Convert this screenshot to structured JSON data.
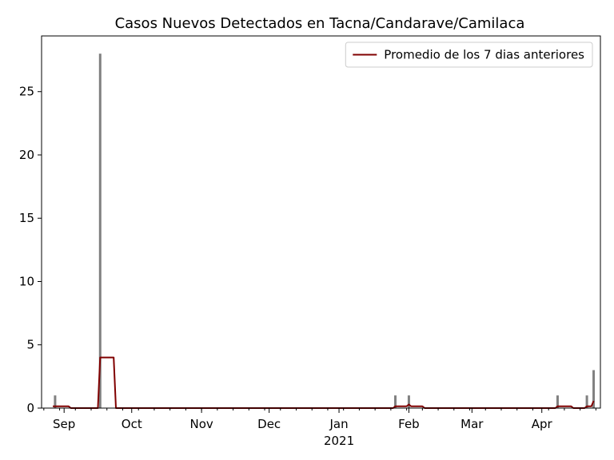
{
  "chart_data": {
    "type": "bar",
    "title": "Casos Nuevos Detectados en Tacna/Candarave/Camilaca",
    "xlabel": "",
    "ylabel": "",
    "x_range": [
      "2020-08-22",
      "2021-04-27"
    ],
    "ylim": [
      0,
      29.4
    ],
    "yticks": [
      0,
      5,
      10,
      15,
      20,
      25
    ],
    "xticks": [
      {
        "date": "2020-09-01",
        "label": "Sep"
      },
      {
        "date": "2020-10-01",
        "label": "Oct"
      },
      {
        "date": "2020-11-01",
        "label": "Nov"
      },
      {
        "date": "2020-12-01",
        "label": "Dec"
      },
      {
        "date": "2021-01-01",
        "label": "Jan"
      },
      {
        "date": "2021-02-01",
        "label": "Feb"
      },
      {
        "date": "2021-03-01",
        "label": "Mar"
      },
      {
        "date": "2021-04-01",
        "label": "Apr"
      }
    ],
    "year_label": "2021",
    "grid": false,
    "legend_position": "top-right",
    "bars": {
      "color": "#808080",
      "points": [
        {
          "date": "2020-08-28",
          "value": 1
        },
        {
          "date": "2020-09-17",
          "value": 28
        },
        {
          "date": "2021-01-26",
          "value": 1
        },
        {
          "date": "2021-02-01",
          "value": 1
        },
        {
          "date": "2021-04-08",
          "value": 1
        },
        {
          "date": "2021-04-21",
          "value": 1
        },
        {
          "date": "2021-04-24",
          "value": 3
        }
      ]
    },
    "series": [
      {
        "name": "Promedio de los 7 dias anteriores",
        "color": "#800000",
        "points": [
          {
            "date": "2020-08-27",
            "value": 0.143
          },
          {
            "date": "2020-09-03",
            "value": 0.143
          },
          {
            "date": "2020-09-04",
            "value": 0
          },
          {
            "date": "2020-09-16",
            "value": 0
          },
          {
            "date": "2020-09-17",
            "value": 4
          },
          {
            "date": "2020-09-23",
            "value": 4
          },
          {
            "date": "2020-09-24",
            "value": 0
          },
          {
            "date": "2021-01-25",
            "value": 0
          },
          {
            "date": "2021-01-26",
            "value": 0.143
          },
          {
            "date": "2021-01-31",
            "value": 0.143
          },
          {
            "date": "2021-02-01",
            "value": 0.286
          },
          {
            "date": "2021-02-02",
            "value": 0.143
          },
          {
            "date": "2021-02-07",
            "value": 0.143
          },
          {
            "date": "2021-02-08",
            "value": 0
          },
          {
            "date": "2021-04-07",
            "value": 0
          },
          {
            "date": "2021-04-08",
            "value": 0.143
          },
          {
            "date": "2021-04-14",
            "value": 0.143
          },
          {
            "date": "2021-04-15",
            "value": 0
          },
          {
            "date": "2021-04-20",
            "value": 0
          },
          {
            "date": "2021-04-21",
            "value": 0.143
          },
          {
            "date": "2021-04-23",
            "value": 0.143
          },
          {
            "date": "2021-04-24",
            "value": 0.571
          }
        ]
      }
    ]
  }
}
